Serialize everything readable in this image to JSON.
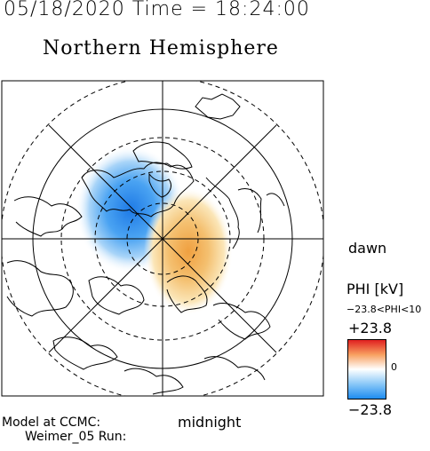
{
  "header": {
    "datetime": "05/18/2020 Time = 18:24:00",
    "hemisphere": "Northern Hemisphere"
  },
  "map": {
    "dawn_label": "dawn",
    "midnight_label": "midnight",
    "colors": {
      "negative": "#2c8cf0",
      "positive": "#e8a040",
      "frame": "#000000"
    }
  },
  "colorbar": {
    "title": "PHI [kV]",
    "range_text": "−23.8<PHI<10",
    "max_label": "+23.8",
    "zero_label": "0",
    "min_label": "−23.8",
    "colors": {
      "top": "#e02020",
      "middle": "#ffffff",
      "bottom": "#1e8cf0"
    }
  },
  "footer": {
    "line1": "Model at CCMC:",
    "line2": "Weimer_05 Run:"
  }
}
